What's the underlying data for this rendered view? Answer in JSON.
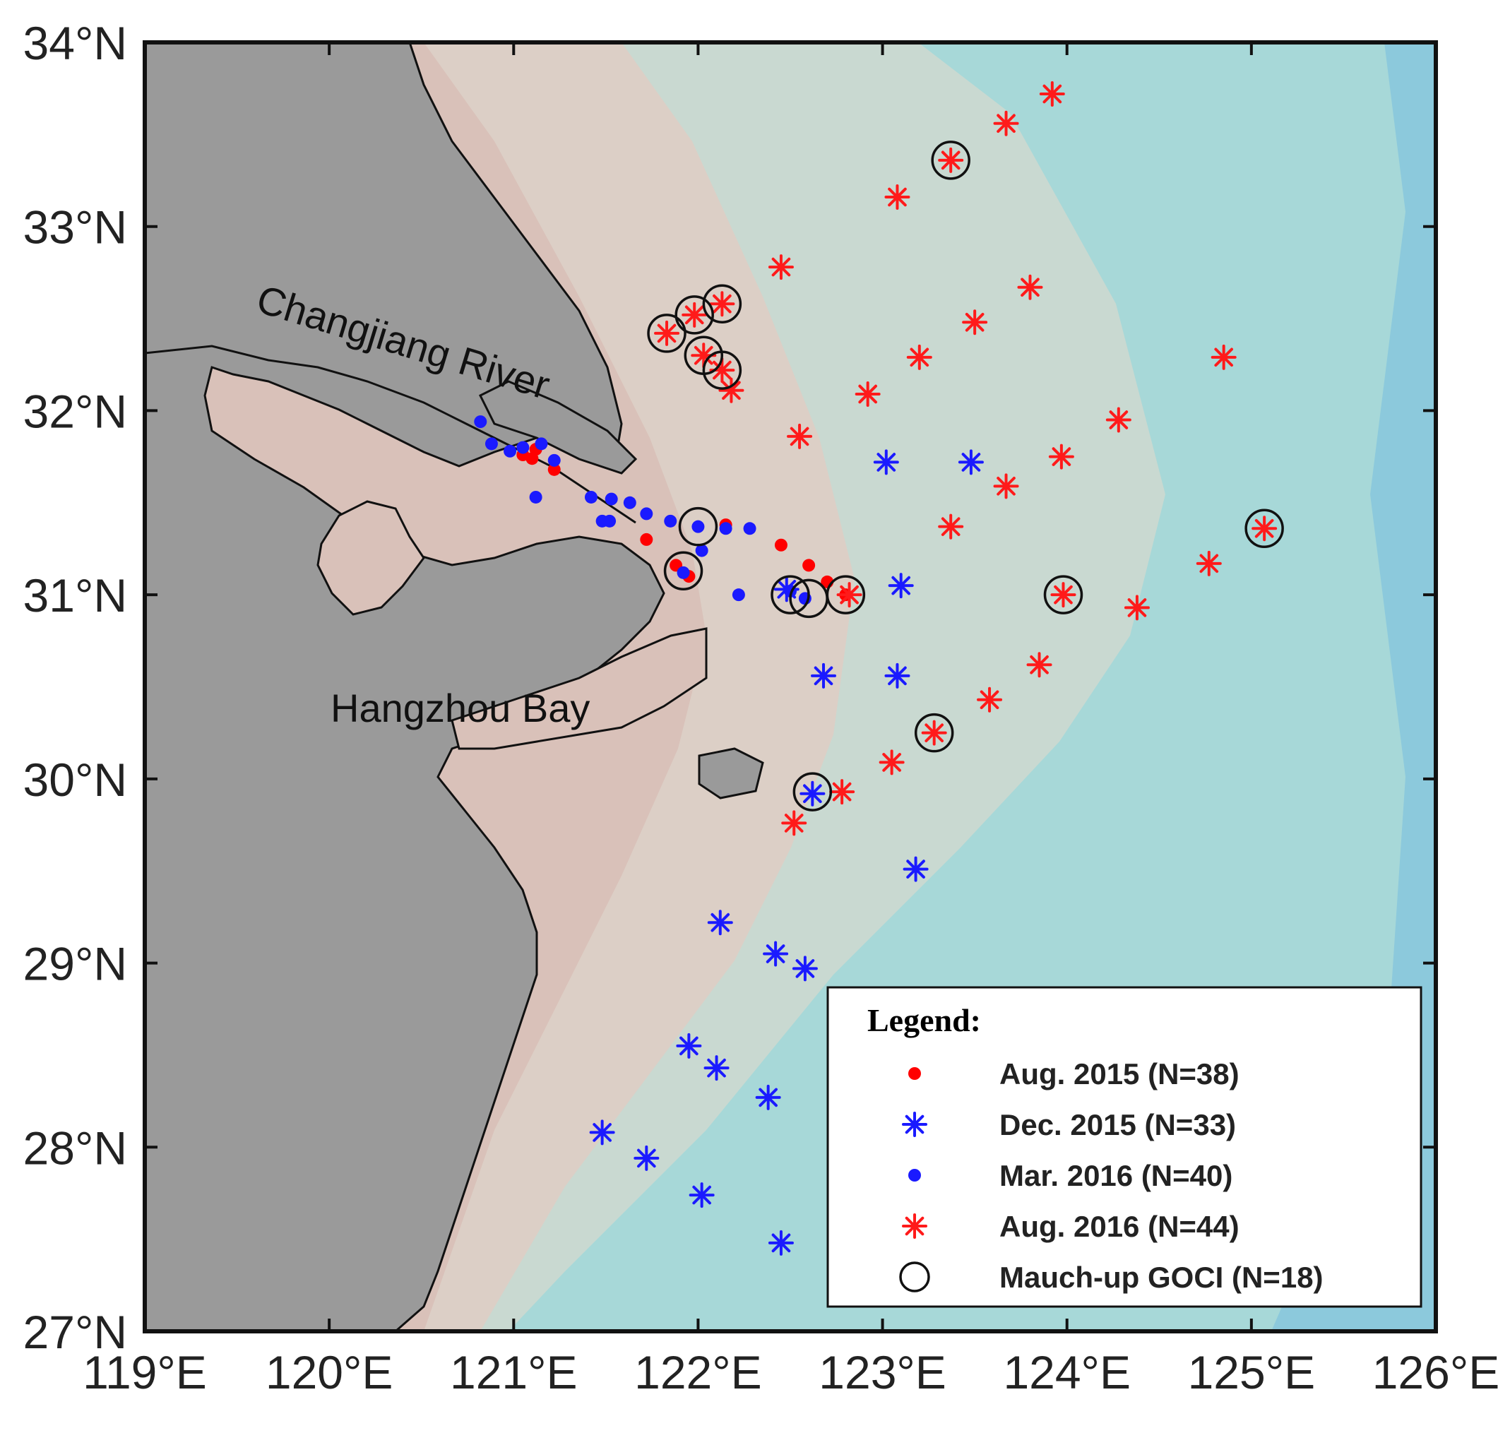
{
  "map": {
    "x_ticks": [
      "119°E",
      "120°E",
      "121°E",
      "122°E",
      "123°E",
      "124°E",
      "125°E",
      "126°E"
    ],
    "y_ticks": [
      "34°N",
      "33°N",
      "32°N",
      "31°N",
      "30°N",
      "29°N",
      "28°N",
      "27°N"
    ],
    "labels": {
      "river": "Changjiang River",
      "bay": "Hangzhou Bay"
    },
    "colors": {
      "land": "#9b9b9b",
      "shelf_inner": "#dcc7c0",
      "shelf_mid": "#d5d1c8",
      "sea": "#a9d7d6",
      "deep_sea": "#7fc3da",
      "aug2015": "#ff0000",
      "dec2015": "#1a1aff",
      "mar2016": "#1a1aff",
      "aug2016": "#ff1a1a"
    }
  },
  "legend": {
    "title": "Legend:",
    "entries": [
      {
        "label": "Aug. 2015 (N=38)",
        "symbol": "dot",
        "color": "#ff0000"
      },
      {
        "label": "Dec. 2015 (N=33)",
        "symbol": "star",
        "color": "#1a1aff"
      },
      {
        "label": "Mar. 2016 (N=40)",
        "symbol": "dot",
        "color": "#1a1aff"
      },
      {
        "label": "Aug. 2016 (N=44)",
        "symbol": "star",
        "color": "#ff1a1a"
      },
      {
        "label": "Mauch-up GOCI (N=18)",
        "symbol": "circle",
        "color": "#000000"
      }
    ]
  },
  "chart_data": {
    "type": "scatter",
    "xlim": [
      119,
      126
    ],
    "ylim": [
      27,
      34
    ],
    "series": [
      {
        "name": "Aug. 2015 (N=38)",
        "marker": "dot",
        "points": [
          [
            121.05,
            31.76
          ],
          [
            121.12,
            31.79
          ],
          [
            121.22,
            31.68
          ],
          [
            121.1,
            31.74
          ],
          [
            121.72,
            31.3
          ],
          [
            121.95,
            31.1
          ],
          [
            121.88,
            31.16
          ],
          [
            122.15,
            31.38
          ],
          [
            122.45,
            31.27
          ],
          [
            122.6,
            31.16
          ],
          [
            122.7,
            31.07
          ],
          [
            122.8,
            31.0
          ]
        ]
      },
      {
        "name": "Dec. 2015 (N=33)",
        "marker": "star",
        "points": [
          [
            123.02,
            31.72
          ],
          [
            123.48,
            31.72
          ],
          [
            123.1,
            31.05
          ],
          [
            122.68,
            30.56
          ],
          [
            123.08,
            30.56
          ],
          [
            122.62,
            29.92
          ],
          [
            123.18,
            29.51
          ],
          [
            122.12,
            29.22
          ],
          [
            122.42,
            29.05
          ],
          [
            122.58,
            28.97
          ],
          [
            121.95,
            28.55
          ],
          [
            122.1,
            28.43
          ],
          [
            122.38,
            28.27
          ],
          [
            121.48,
            28.08
          ],
          [
            121.72,
            27.94
          ],
          [
            122.02,
            27.74
          ],
          [
            122.45,
            27.48
          ],
          [
            122.48,
            31.03
          ]
        ]
      },
      {
        "name": "Mar. 2016 (N=40)",
        "marker": "dot",
        "points": [
          [
            120.82,
            31.94
          ],
          [
            120.88,
            31.82
          ],
          [
            120.98,
            31.78
          ],
          [
            121.05,
            31.8
          ],
          [
            121.15,
            31.82
          ],
          [
            121.22,
            31.73
          ],
          [
            121.12,
            31.53
          ],
          [
            121.42,
            31.53
          ],
          [
            121.53,
            31.52
          ],
          [
            121.63,
            31.5
          ],
          [
            121.52,
            31.4
          ],
          [
            121.48,
            31.4
          ],
          [
            121.72,
            31.44
          ],
          [
            121.85,
            31.4
          ],
          [
            122.0,
            31.37
          ],
          [
            122.15,
            31.36
          ],
          [
            122.28,
            31.36
          ],
          [
            122.02,
            31.24
          ],
          [
            121.92,
            31.12
          ],
          [
            122.22,
            31.0
          ],
          [
            122.5,
            31.02
          ],
          [
            122.58,
            30.98
          ]
        ]
      },
      {
        "name": "Aug. 2016 (N=44)",
        "marker": "star",
        "points": [
          [
            123.92,
            33.72
          ],
          [
            123.67,
            33.56
          ],
          [
            123.37,
            33.36
          ],
          [
            123.08,
            33.16
          ],
          [
            122.45,
            32.78
          ],
          [
            122.13,
            32.58
          ],
          [
            121.98,
            32.52
          ],
          [
            121.83,
            32.42
          ],
          [
            122.03,
            32.3
          ],
          [
            122.13,
            32.22
          ],
          [
            122.18,
            32.11
          ],
          [
            122.55,
            31.86
          ],
          [
            122.92,
            32.09
          ],
          [
            123.2,
            32.29
          ],
          [
            123.5,
            32.48
          ],
          [
            123.8,
            32.67
          ],
          [
            124.85,
            32.29
          ],
          [
            124.28,
            31.95
          ],
          [
            123.97,
            31.75
          ],
          [
            123.67,
            31.59
          ],
          [
            123.37,
            31.37
          ],
          [
            125.07,
            31.36
          ],
          [
            124.77,
            31.17
          ],
          [
            123.98,
            31.0
          ],
          [
            124.38,
            30.93
          ],
          [
            122.82,
            31.0
          ],
          [
            123.85,
            30.62
          ],
          [
            123.58,
            30.43
          ],
          [
            123.28,
            30.25
          ],
          [
            123.05,
            30.09
          ],
          [
            122.78,
            29.93
          ],
          [
            122.52,
            29.76
          ]
        ]
      },
      {
        "name": "Mauch-up GOCI (N=18)",
        "marker": "circle",
        "points": [
          [
            123.37,
            33.36
          ],
          [
            122.13,
            32.58
          ],
          [
            121.98,
            32.52
          ],
          [
            121.83,
            32.42
          ],
          [
            122.03,
            32.3
          ],
          [
            122.13,
            32.22
          ],
          [
            122.0,
            31.37
          ],
          [
            121.92,
            31.13
          ],
          [
            122.5,
            31.0
          ],
          [
            122.6,
            30.98
          ],
          [
            122.8,
            31.0
          ],
          [
            123.98,
            31.0
          ],
          [
            125.07,
            31.36
          ],
          [
            123.28,
            30.25
          ],
          [
            122.62,
            29.93
          ]
        ]
      }
    ]
  }
}
